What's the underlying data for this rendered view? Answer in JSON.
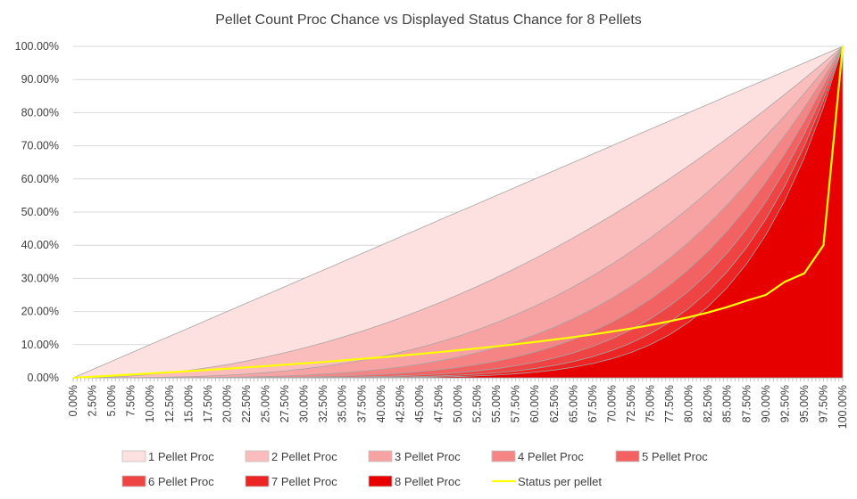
{
  "chart_data": {
    "type": "area",
    "title": "Pellet Count Proc Chance vs Displayed Status Chance for 8 Pellets",
    "xlabel": "",
    "ylabel": "",
    "xlim": [
      0,
      100
    ],
    "ylim": [
      0,
      100
    ],
    "grid": "horizontal",
    "legend_position": "bottom",
    "x_tick_labels": [
      "0.00%",
      "2.50%",
      "5.00%",
      "7.50%",
      "10.00%",
      "12.50%",
      "15.00%",
      "17.50%",
      "20.00%",
      "22.50%",
      "25.00%",
      "27.50%",
      "30.00%",
      "32.50%",
      "35.00%",
      "37.50%",
      "40.00%",
      "42.50%",
      "45.00%",
      "47.50%",
      "50.00%",
      "52.50%",
      "55.00%",
      "57.50%",
      "60.00%",
      "62.50%",
      "65.00%",
      "67.50%",
      "70.00%",
      "72.50%",
      "75.00%",
      "77.50%",
      "80.00%",
      "82.50%",
      "85.00%",
      "87.50%",
      "90.00%",
      "92.50%",
      "95.00%",
      "97.50%",
      "100.00%"
    ],
    "y_tick_labels": [
      "0.00%",
      "10.00%",
      "20.00%",
      "30.00%",
      "40.00%",
      "50.00%",
      "60.00%",
      "70.00%",
      "80.00%",
      "90.00%",
      "100.00%"
    ],
    "x": [
      0,
      2.5,
      5,
      7.5,
      10,
      12.5,
      15,
      17.5,
      20,
      22.5,
      25,
      27.5,
      30,
      32.5,
      35,
      37.5,
      40,
      42.5,
      45,
      47.5,
      50,
      52.5,
      55,
      57.5,
      60,
      62.5,
      65,
      67.5,
      70,
      72.5,
      75,
      77.5,
      80,
      82.5,
      85,
      87.5,
      90,
      92.5,
      95,
      97.5,
      100
    ],
    "series": [
      {
        "name": "1 Pellet Proc",
        "type": "area",
        "color": "#fde0e0",
        "values": [
          0,
          2.5,
          5,
          7.5,
          10,
          12.5,
          15,
          17.5,
          20,
          22.5,
          25,
          27.5,
          30,
          32.5,
          35,
          37.5,
          40,
          42.5,
          45,
          47.5,
          50,
          52.5,
          55,
          57.5,
          60,
          62.5,
          65,
          67.5,
          70,
          72.5,
          75,
          77.5,
          80,
          82.5,
          85,
          87.5,
          90,
          92.5,
          95,
          97.5,
          100
        ]
      },
      {
        "name": "2 Pellet Proc",
        "type": "area",
        "color": "#fbbcbc",
        "values": [
          0,
          0.06,
          0.25,
          0.56,
          1,
          1.56,
          2.25,
          3.06,
          4,
          5.06,
          6.25,
          7.56,
          9,
          10.56,
          12.25,
          14.06,
          16,
          18.06,
          20.25,
          22.56,
          25,
          27.56,
          30.25,
          33.06,
          36,
          39.06,
          42.25,
          45.56,
          49,
          52.56,
          56.25,
          60.06,
          64,
          68.06,
          72.25,
          76.56,
          81,
          85.56,
          90.25,
          95.06,
          100
        ]
      },
      {
        "name": "3 Pellet Proc",
        "type": "area",
        "color": "#f8a3a3",
        "values": [
          0,
          0,
          0.01,
          0.04,
          0.1,
          0.2,
          0.34,
          0.54,
          0.8,
          1.14,
          1.56,
          2.08,
          2.7,
          3.43,
          4.29,
          5.27,
          6.4,
          7.68,
          9.11,
          10.72,
          12.5,
          14.47,
          16.64,
          19.01,
          21.6,
          24.41,
          27.46,
          30.75,
          34.3,
          38.11,
          42.19,
          46.55,
          51.2,
          56.15,
          61.41,
          66.99,
          72.9,
          79.15,
          85.74,
          92.69,
          100
        ]
      },
      {
        "name": "4 Pellet Proc",
        "type": "area",
        "color": "#f58585",
        "values": [
          0,
          0,
          0,
          0,
          0.01,
          0.02,
          0.05,
          0.09,
          0.16,
          0.26,
          0.39,
          0.57,
          0.81,
          1.12,
          1.5,
          1.98,
          2.56,
          3.26,
          4.1,
          5.09,
          6.25,
          7.6,
          9.15,
          10.93,
          12.96,
          15.26,
          17.85,
          20.76,
          24.01,
          27.63,
          31.64,
          36.07,
          40.96,
          46.33,
          52.2,
          58.62,
          65.61,
          73.21,
          81.45,
          90.37,
          100
        ]
      },
      {
        "name": "5 Pellet Proc",
        "type": "area",
        "color": "#f26262",
        "values": [
          0,
          0,
          0,
          0,
          0,
          0,
          0.01,
          0.02,
          0.03,
          0.06,
          0.1,
          0.16,
          0.24,
          0.36,
          0.53,
          0.74,
          1.02,
          1.39,
          1.85,
          2.42,
          3.13,
          3.99,
          5.03,
          6.29,
          7.78,
          9.54,
          11.6,
          14.01,
          16.81,
          20.03,
          23.73,
          27.96,
          32.77,
          38.22,
          44.37,
          51.29,
          59.05,
          67.72,
          77.38,
          88.11,
          100
        ]
      },
      {
        "name": "6 Pellet Proc",
        "type": "area",
        "color": "#ef4444",
        "values": [
          0,
          0,
          0,
          0,
          0,
          0,
          0,
          0,
          0.01,
          0.01,
          0.02,
          0.04,
          0.07,
          0.12,
          0.18,
          0.28,
          0.41,
          0.59,
          0.83,
          1.15,
          1.56,
          2.1,
          2.77,
          3.62,
          4.67,
          5.96,
          7.54,
          9.46,
          11.76,
          14.52,
          17.8,
          21.67,
          26.21,
          31.53,
          37.71,
          44.88,
          53.14,
          62.64,
          73.51,
          85.91,
          100
        ]
      },
      {
        "name": "7 Pellet Proc",
        "type": "area",
        "color": "#ec2424",
        "values": [
          0,
          0,
          0,
          0,
          0,
          0,
          0,
          0,
          0,
          0,
          0.01,
          0.01,
          0.02,
          0.04,
          0.06,
          0.1,
          0.16,
          0.25,
          0.37,
          0.55,
          0.78,
          1.1,
          1.52,
          2.08,
          2.8,
          3.73,
          4.9,
          6.38,
          8.24,
          10.53,
          13.35,
          16.79,
          20.97,
          26.01,
          32.06,
          39.27,
          47.83,
          57.94,
          69.83,
          83.76,
          100
        ]
      },
      {
        "name": "8 Pellet Proc",
        "type": "area",
        "color": "#e60000",
        "values": [
          0,
          0,
          0,
          0,
          0,
          0,
          0,
          0,
          0,
          0,
          0,
          0,
          0.01,
          0.01,
          0.02,
          0.04,
          0.07,
          0.11,
          0.17,
          0.26,
          0.39,
          0.58,
          0.84,
          1.2,
          1.68,
          2.33,
          3.19,
          4.31,
          5.76,
          7.63,
          10.01,
          13.02,
          16.78,
          21.46,
          27.25,
          34.36,
          43.05,
          53.6,
          66.34,
          81.67,
          100
        ]
      },
      {
        "name": "Status per pellet",
        "type": "line",
        "color": "#ffff00",
        "values": [
          0,
          0.32,
          0.64,
          0.97,
          1.31,
          1.66,
          2.01,
          2.38,
          2.75,
          3.14,
          3.53,
          3.94,
          4.36,
          4.79,
          5.24,
          5.71,
          6.19,
          6.69,
          7.21,
          7.75,
          8.3,
          8.89,
          9.5,
          10.14,
          10.81,
          11.53,
          12.28,
          13.09,
          13.95,
          14.87,
          15.91,
          17.05,
          18.3,
          19.72,
          21.35,
          23.27,
          25.0,
          29.0,
          31.5,
          40.0,
          100
        ]
      }
    ]
  }
}
